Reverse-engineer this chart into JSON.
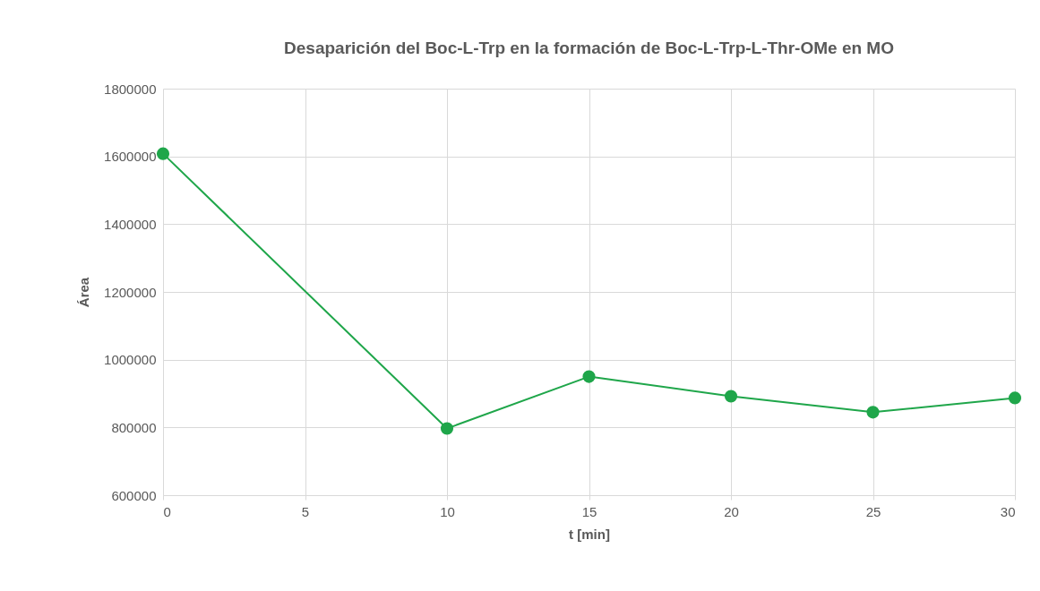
{
  "chart_data": {
    "type": "line",
    "title": "Desaparición del Boc-L-Trp en la formación de Boc-L-Trp-L-Thr-OMe en MO",
    "xlabel": "t [min]",
    "ylabel": "Área",
    "x": [
      0,
      10,
      15,
      20,
      25,
      30
    ],
    "series": [
      {
        "color": "#1fa64a",
        "values": [
          1608000,
          797000,
          950000,
          892000,
          845000,
          887000
        ]
      }
    ],
    "xlim": [
      0,
      30
    ],
    "xticks": [
      0,
      5,
      10,
      15,
      20,
      25,
      30
    ],
    "ylim": [
      600000,
      1800000
    ],
    "yticks": [
      600000,
      800000,
      1000000,
      1200000,
      1400000,
      1600000,
      1800000
    ],
    "grid": true,
    "marker": "circle"
  }
}
